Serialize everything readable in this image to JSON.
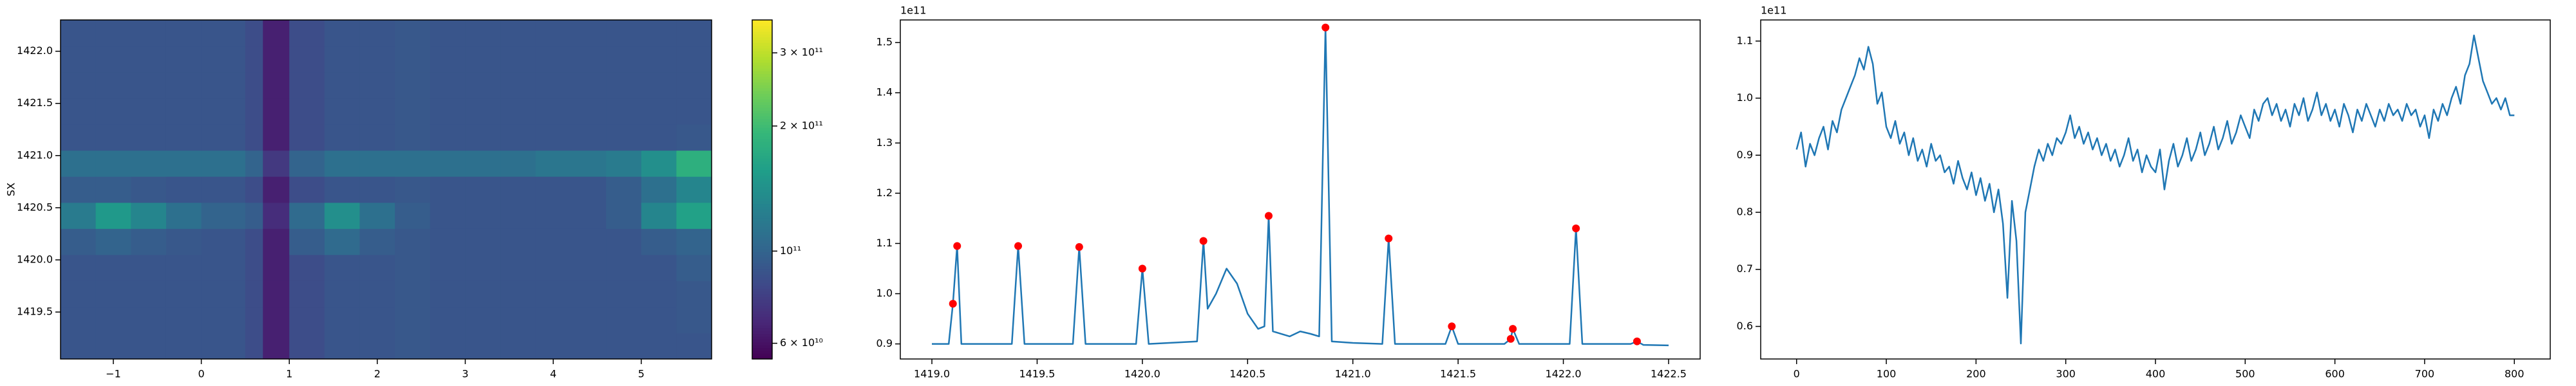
{
  "chart_data": [
    {
      "type": "heatmap",
      "ylabel": "SX",
      "x_edges": [
        -1.6,
        -1.2,
        -0.8,
        -0.4,
        0,
        0.5,
        0.7,
        1.0,
        1.4,
        1.8,
        2.2,
        2.6,
        3.0,
        3.4,
        3.8,
        4.2,
        4.6,
        5.0,
        5.4,
        5.8
      ],
      "y_edges": [
        1419.05,
        1419.3,
        1419.55,
        1419.8,
        1420.05,
        1420.3,
        1420.55,
        1420.8,
        1421.05,
        1421.3,
        1421.55,
        1421.8,
        1422.05,
        1422.3
      ],
      "values": [
        [
          90000000000.0,
          90000000000.0,
          90000000000.0,
          90000000000.0,
          90000000000.0,
          85000000000.0,
          65000000000.0,
          85000000000.0,
          90000000000.0,
          90000000000.0,
          92000000000.0,
          90000000000.0,
          90000000000.0,
          90000000000.0,
          90000000000.0,
          90000000000.0,
          90000000000.0,
          90000000000.0,
          90000000000.0
        ],
        [
          90000000000.0,
          90000000000.0,
          90000000000.0,
          90000000000.0,
          90000000000.0,
          85000000000.0,
          65000000000.0,
          85000000000.0,
          90000000000.0,
          90000000000.0,
          92000000000.0,
          90000000000.0,
          90000000000.0,
          90000000000.0,
          90000000000.0,
          90000000000.0,
          90000000000.0,
          90000000000.0,
          92000000000.0
        ],
        [
          90000000000.0,
          90000000000.0,
          90000000000.0,
          90000000000.0,
          90000000000.0,
          85000000000.0,
          65000000000.0,
          85000000000.0,
          90000000000.0,
          90000000000.0,
          92000000000.0,
          90000000000.0,
          90000000000.0,
          90000000000.0,
          90000000000.0,
          90000000000.0,
          90000000000.0,
          90000000000.0,
          92000000000.0
        ],
        [
          90000000000.0,
          90000000000.0,
          90000000000.0,
          90000000000.0,
          90000000000.0,
          85000000000.0,
          65000000000.0,
          85000000000.0,
          90000000000.0,
          90000000000.0,
          92000000000.0,
          90000000000.0,
          90000000000.0,
          90000000000.0,
          90000000000.0,
          90000000000.0,
          90000000000.0,
          90000000000.0,
          95000000000.0
        ],
        [
          95000000000.0,
          100000000000.0,
          95000000000.0,
          92000000000.0,
          90000000000.0,
          85000000000.0,
          65000000000.0,
          95000000000.0,
          105000000000.0,
          95000000000.0,
          92000000000.0,
          90000000000.0,
          90000000000.0,
          90000000000.0,
          90000000000.0,
          90000000000.0,
          90000000000.0,
          95000000000.0,
          100000000000.0
        ],
        [
          120000000000.0,
          150000000000.0,
          130000000000.0,
          110000000000.0,
          100000000000.0,
          95000000000.0,
          70000000000.0,
          105000000000.0,
          140000000000.0,
          110000000000.0,
          95000000000.0,
          90000000000.0,
          90000000000.0,
          90000000000.0,
          90000000000.0,
          90000000000.0,
          95000000000.0,
          130000000000.0,
          160000000000.0
        ],
        [
          95000000000.0,
          95000000000.0,
          92000000000.0,
          90000000000.0,
          90000000000.0,
          85000000000.0,
          65000000000.0,
          85000000000.0,
          90000000000.0,
          90000000000.0,
          92000000000.0,
          90000000000.0,
          90000000000.0,
          90000000000.0,
          90000000000.0,
          90000000000.0,
          95000000000.0,
          110000000000.0,
          130000000000.0
        ],
        [
          110000000000.0,
          110000000000.0,
          110000000000.0,
          110000000000.0,
          110000000000.0,
          100000000000.0,
          75000000000.0,
          100000000000.0,
          110000000000.0,
          110000000000.0,
          110000000000.0,
          110000000000.0,
          110000000000.0,
          110000000000.0,
          115000000000.0,
          115000000000.0,
          120000000000.0,
          140000000000.0,
          180000000000.0
        ],
        [
          90000000000.0,
          90000000000.0,
          90000000000.0,
          90000000000.0,
          90000000000.0,
          85000000000.0,
          65000000000.0,
          85000000000.0,
          90000000000.0,
          90000000000.0,
          92000000000.0,
          90000000000.0,
          90000000000.0,
          90000000000.0,
          90000000000.0,
          90000000000.0,
          90000000000.0,
          90000000000.0,
          92000000000.0
        ],
        [
          90000000000.0,
          90000000000.0,
          90000000000.0,
          90000000000.0,
          90000000000.0,
          85000000000.0,
          65000000000.0,
          85000000000.0,
          90000000000.0,
          90000000000.0,
          92000000000.0,
          90000000000.0,
          90000000000.0,
          90000000000.0,
          90000000000.0,
          90000000000.0,
          90000000000.0,
          90000000000.0,
          90000000000.0
        ],
        [
          90000000000.0,
          90000000000.0,
          90000000000.0,
          90000000000.0,
          90000000000.0,
          85000000000.0,
          65000000000.0,
          85000000000.0,
          90000000000.0,
          90000000000.0,
          92000000000.0,
          90000000000.0,
          90000000000.0,
          90000000000.0,
          90000000000.0,
          90000000000.0,
          90000000000.0,
          90000000000.0,
          90000000000.0
        ],
        [
          90000000000.0,
          90000000000.0,
          90000000000.0,
          90000000000.0,
          90000000000.0,
          85000000000.0,
          65000000000.0,
          85000000000.0,
          90000000000.0,
          90000000000.0,
          92000000000.0,
          90000000000.0,
          90000000000.0,
          90000000000.0,
          90000000000.0,
          90000000000.0,
          90000000000.0,
          90000000000.0,
          90000000000.0
        ],
        [
          90000000000.0,
          90000000000.0,
          90000000000.0,
          90000000000.0,
          90000000000.0,
          85000000000.0,
          65000000000.0,
          85000000000.0,
          90000000000.0,
          90000000000.0,
          92000000000.0,
          90000000000.0,
          90000000000.0,
          90000000000.0,
          90000000000.0,
          90000000000.0,
          90000000000.0,
          90000000000.0,
          90000000000.0
        ]
      ],
      "xlim": [
        -1.6,
        5.8
      ],
      "ylim": [
        1419.05,
        1422.3
      ],
      "xticks": [
        {
          "value": -1,
          "label": "−1"
        },
        0,
        1,
        2,
        3,
        4,
        5
      ],
      "yticks": [
        1419.5,
        {
          "value": 1420,
          "label": "1420.0"
        },
        1420.5,
        {
          "value": 1421,
          "label": "1421.0"
        },
        1421.5,
        {
          "value": 1422,
          "label": "1422.0"
        }
      ],
      "colorbar": {
        "scale": "log",
        "lim": [
          55000000000.0,
          360000000000.0
        ],
        "ticks": [
          {
            "value": 60000000000.0,
            "label": "6 × 10¹⁰"
          },
          {
            "value": 100000000000.0,
            "label": "10¹¹"
          },
          {
            "value": 200000000000.0,
            "label": "2 × 10¹¹"
          },
          {
            "value": 300000000000.0,
            "label": "3 × 10¹¹"
          }
        ]
      }
    },
    {
      "type": "line",
      "offset_text": "1e11",
      "color": "#1f77b4",
      "x": [
        1419.0,
        1419.08,
        1419.1,
        1419.12,
        1419.14,
        1419.38,
        1419.41,
        1419.44,
        1419.67,
        1419.7,
        1419.73,
        1419.97,
        1420.0,
        1420.03,
        1420.26,
        1420.29,
        1420.31,
        1420.35,
        1420.4,
        1420.45,
        1420.5,
        1420.55,
        1420.58,
        1420.6,
        1420.62,
        1420.7,
        1420.75,
        1420.8,
        1420.84,
        1420.87,
        1420.9,
        1421.0,
        1421.14,
        1421.17,
        1421.2,
        1421.44,
        1421.47,
        1421.5,
        1421.72,
        1421.75,
        1421.76,
        1421.79,
        1422.03,
        1422.06,
        1422.09,
        1422.32,
        1422.35,
        1422.38,
        1422.5
      ],
      "values": [
        0.9,
        0.9,
        0.98,
        1.095,
        0.9,
        0.9,
        1.095,
        0.9,
        0.9,
        1.093,
        0.9,
        0.9,
        1.05,
        0.9,
        0.905,
        1.105,
        0.97,
        1.0,
        1.05,
        1.02,
        0.96,
        0.93,
        0.935,
        1.155,
        0.925,
        0.915,
        0.925,
        0.92,
        0.915,
        1.53,
        0.905,
        0.902,
        0.9,
        1.11,
        0.9,
        0.9,
        0.935,
        0.9,
        0.9,
        0.91,
        0.93,
        0.9,
        0.9,
        1.13,
        0.9,
        0.9,
        0.905,
        0.898,
        0.897
      ],
      "peaks": {
        "color": "#ff0000",
        "x": [
          1419.1,
          1419.12,
          1419.41,
          1419.7,
          1420.0,
          1420.29,
          1420.6,
          1420.87,
          1421.17,
          1421.47,
          1421.75,
          1421.76,
          1422.06,
          1422.35
        ],
        "values": [
          0.98,
          1.095,
          1.095,
          1.093,
          1.05,
          1.105,
          1.155,
          1.53,
          1.11,
          0.935,
          0.91,
          0.93,
          1.13,
          0.905
        ]
      },
      "xlim": [
        1418.85,
        1422.65
      ],
      "ylim": [
        0.87,
        1.545
      ],
      "xticks": [
        {
          "value": 1419,
          "label": "1419.0"
        },
        1419.5,
        {
          "value": 1420,
          "label": "1420.0"
        },
        1420.5,
        {
          "value": 1421,
          "label": "1421.0"
        },
        1421.5,
        {
          "value": 1422,
          "label": "1422.0"
        },
        1422.5
      ],
      "yticks": [
        0.9,
        {
          "value": 1,
          "label": "1.0"
        },
        1.1,
        1.2,
        1.3,
        1.4,
        1.5
      ]
    },
    {
      "type": "line",
      "offset_text": "1e11",
      "color": "#1f77b4",
      "x": [
        0,
        5,
        10,
        15,
        20,
        25,
        30,
        35,
        40,
        45,
        50,
        55,
        60,
        65,
        70,
        75,
        80,
        85,
        90,
        95,
        100,
        105,
        110,
        115,
        120,
        125,
        130,
        135,
        140,
        145,
        150,
        155,
        160,
        165,
        170,
        175,
        180,
        185,
        190,
        195,
        200,
        205,
        210,
        215,
        220,
        225,
        230,
        235,
        240,
        245,
        250,
        255,
        260,
        265,
        270,
        275,
        280,
        285,
        290,
        295,
        300,
        305,
        310,
        315,
        320,
        325,
        330,
        335,
        340,
        345,
        350,
        355,
        360,
        365,
        370,
        375,
        380,
        385,
        390,
        395,
        400,
        405,
        410,
        415,
        420,
        425,
        430,
        435,
        440,
        445,
        450,
        455,
        460,
        465,
        470,
        475,
        480,
        485,
        490,
        495,
        500,
        505,
        510,
        515,
        520,
        525,
        530,
        535,
        540,
        545,
        550,
        555,
        560,
        565,
        570,
        575,
        580,
        585,
        590,
        595,
        600,
        605,
        610,
        615,
        620,
        625,
        630,
        635,
        640,
        645,
        650,
        655,
        660,
        665,
        670,
        675,
        680,
        685,
        690,
        695,
        700,
        705,
        710,
        715,
        720,
        725,
        730,
        735,
        740,
        745,
        750,
        755,
        760,
        765,
        770,
        775,
        780,
        785,
        790,
        795,
        800
      ],
      "values": [
        0.91,
        0.94,
        0.88,
        0.92,
        0.9,
        0.93,
        0.95,
        0.91,
        0.96,
        0.94,
        0.98,
        1.0,
        1.02,
        1.04,
        1.07,
        1.05,
        1.09,
        1.06,
        0.99,
        1.01,
        0.95,
        0.93,
        0.96,
        0.92,
        0.94,
        0.9,
        0.93,
        0.89,
        0.91,
        0.88,
        0.92,
        0.89,
        0.9,
        0.87,
        0.88,
        0.85,
        0.89,
        0.86,
        0.84,
        0.87,
        0.83,
        0.86,
        0.82,
        0.85,
        0.8,
        0.84,
        0.78,
        0.65,
        0.82,
        0.75,
        0.57,
        0.8,
        0.84,
        0.88,
        0.91,
        0.89,
        0.92,
        0.9,
        0.93,
        0.92,
        0.94,
        0.97,
        0.93,
        0.95,
        0.92,
        0.94,
        0.91,
        0.93,
        0.9,
        0.92,
        0.89,
        0.91,
        0.88,
        0.9,
        0.93,
        0.89,
        0.91,
        0.87,
        0.9,
        0.88,
        0.87,
        0.91,
        0.84,
        0.89,
        0.92,
        0.88,
        0.9,
        0.93,
        0.89,
        0.91,
        0.94,
        0.9,
        0.92,
        0.95,
        0.91,
        0.93,
        0.96,
        0.92,
        0.94,
        0.97,
        0.95,
        0.93,
        0.98,
        0.96,
        0.99,
        1.0,
        0.97,
        0.99,
        0.96,
        0.98,
        0.95,
        0.99,
        0.97,
        1.0,
        0.96,
        0.98,
        1.01,
        0.97,
        0.99,
        0.96,
        0.98,
        0.95,
        0.99,
        0.97,
        0.94,
        0.98,
        0.96,
        0.99,
        0.97,
        0.95,
        0.98,
        0.96,
        0.99,
        0.97,
        0.98,
        0.96,
        0.99,
        0.97,
        0.98,
        0.95,
        0.97,
        0.93,
        0.98,
        0.96,
        0.99,
        0.97,
        1.0,
        1.02,
        0.99,
        1.04,
        1.06,
        1.11,
        1.07,
        1.03,
        1.01,
        0.99,
        1.0,
        0.98,
        1.0,
        0.97,
        0.97
      ],
      "xlim": [
        -40,
        840
      ],
      "ylim": [
        0.543,
        1.137
      ],
      "xticks": [
        0,
        100,
        200,
        300,
        400,
        500,
        600,
        700,
        800
      ],
      "yticks": [
        0.6,
        0.7,
        0.8,
        0.9,
        {
          "value": 1,
          "label": "1.0"
        },
        1.1
      ]
    }
  ]
}
